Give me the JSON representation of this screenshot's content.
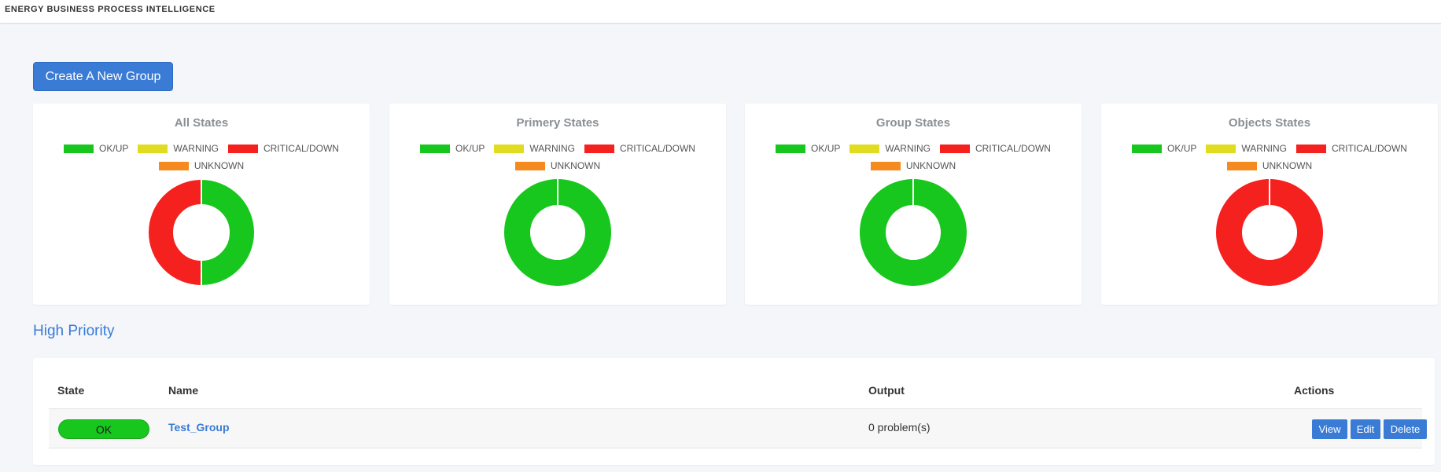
{
  "app": {
    "title": "ENERGY BUSINESS PROCESS INTELLIGENCE"
  },
  "toolbar": {
    "create_label": "Create A New Group"
  },
  "legend": {
    "ok": "OK/UP",
    "warning": "WARNING",
    "critical": "CRITICAL/DOWN",
    "unknown": "UNKNOWN"
  },
  "colors": {
    "ok": "#18c71d",
    "warning": "#e0dc1f",
    "critical": "#f4211f",
    "unknown": "#f58a1f",
    "accent": "#3a7bd5"
  },
  "chart_data": [
    {
      "type": "pie",
      "title": "All States",
      "categories": [
        "OK/UP",
        "WARNING",
        "CRITICAL/DOWN",
        "UNKNOWN"
      ],
      "values": [
        1,
        0,
        1,
        0
      ]
    },
    {
      "type": "pie",
      "title": "Primery States",
      "categories": [
        "OK/UP",
        "WARNING",
        "CRITICAL/DOWN",
        "UNKNOWN"
      ],
      "values": [
        1,
        0,
        0,
        0
      ]
    },
    {
      "type": "pie",
      "title": "Group States",
      "categories": [
        "OK/UP",
        "WARNING",
        "CRITICAL/DOWN",
        "UNKNOWN"
      ],
      "values": [
        1,
        0,
        0,
        0
      ]
    },
    {
      "type": "pie",
      "title": "Objects States",
      "categories": [
        "OK/UP",
        "WARNING",
        "CRITICAL/DOWN",
        "UNKNOWN"
      ],
      "values": [
        0,
        0,
        1,
        0
      ]
    }
  ],
  "high_priority": {
    "title": "High Priority",
    "columns": {
      "state": "State",
      "name": "Name",
      "output": "Output",
      "actions": "Actions"
    },
    "rows": [
      {
        "state": "OK",
        "name": "Test_Group",
        "output": "0 problem(s)"
      }
    ],
    "actions": {
      "view": "View",
      "edit": "Edit",
      "delete": "Delete"
    }
  }
}
